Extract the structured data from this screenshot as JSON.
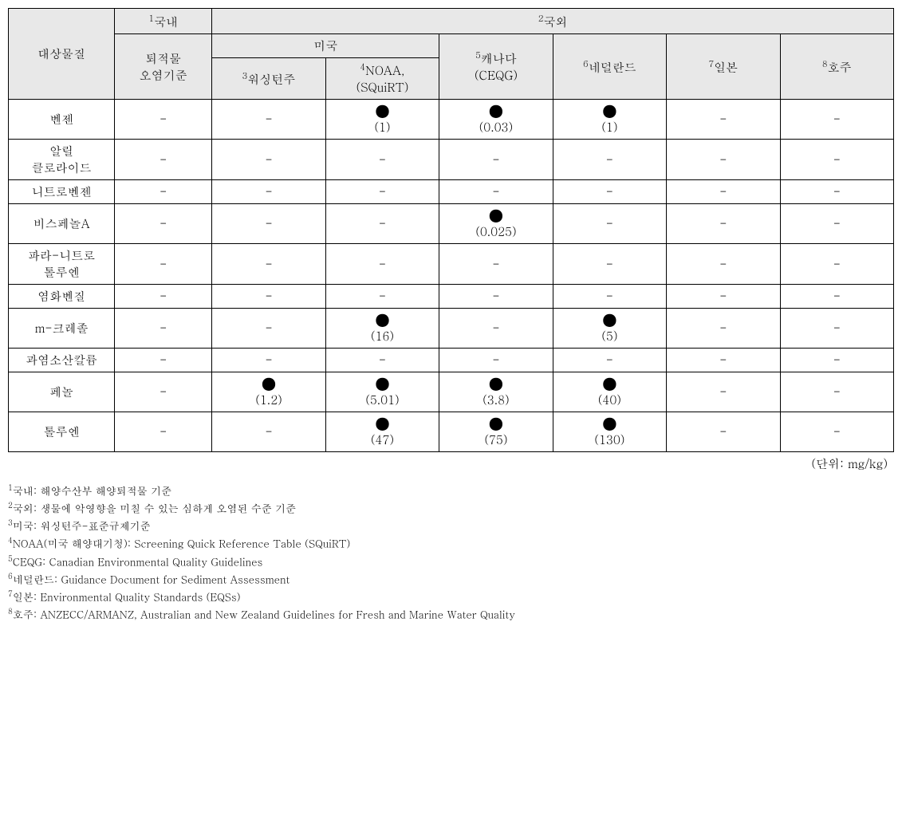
{
  "headers": {
    "substance": "대상물질",
    "domestic_super": "1",
    "domestic": "국내",
    "domestic_sub": "퇴적물\n오염기준",
    "foreign_super": "2",
    "foreign": "국외",
    "usa": "미국",
    "washington_super": "3",
    "washington": "워싱턴주",
    "noaa_super": "4",
    "noaa": "NOAA,\n(SQuiRT)",
    "canada_super": "5",
    "canada": "캐나다\n(CEQG)",
    "netherlands_super": "6",
    "netherlands": "네덜란드",
    "japan_super": "7",
    "japan": "일본",
    "australia_super": "8",
    "australia": "호주"
  },
  "dot": "●",
  "dash": "-",
  "rows": [
    {
      "name": "벤젠",
      "cells": [
        "-",
        "-",
        {
          "dot": true,
          "val": "(1)"
        },
        {
          "dot": true,
          "val": "(0.03)"
        },
        {
          "dot": true,
          "val": "(1)"
        },
        "-",
        "-"
      ]
    },
    {
      "name": "알릴\n클로라이드",
      "cells": [
        "-",
        "-",
        "-",
        "-",
        "-",
        "-",
        "-"
      ]
    },
    {
      "name": "니트로벤젠",
      "cells": [
        "-",
        "-",
        "-",
        "-",
        "-",
        "-",
        "-"
      ]
    },
    {
      "name": "비스페놀A",
      "cells": [
        "-",
        "-",
        "-",
        {
          "dot": true,
          "val": "(0.025)"
        },
        "-",
        "-",
        "-"
      ]
    },
    {
      "name": "파라-니트로\n톨루엔",
      "cells": [
        "-",
        "-",
        "-",
        "-",
        "-",
        "-",
        "-"
      ]
    },
    {
      "name": "염화벤질",
      "cells": [
        "-",
        "-",
        "-",
        "-",
        "-",
        "-",
        "-"
      ]
    },
    {
      "name": "m-크레졸",
      "cells": [
        "-",
        "-",
        {
          "dot": true,
          "val": "(16)"
        },
        "-",
        {
          "dot": true,
          "val": "(5)"
        },
        "-",
        "-"
      ]
    },
    {
      "name": "과염소산칼륨",
      "cells": [
        "-",
        "-",
        "-",
        "-",
        "-",
        "-",
        "-"
      ]
    },
    {
      "name": "페놀",
      "cells": [
        "-",
        {
          "dot": true,
          "val": "(1.2)"
        },
        {
          "dot": true,
          "val": "(5.01)"
        },
        {
          "dot": true,
          "val": "(3.8)"
        },
        {
          "dot": true,
          "val": "(40)"
        },
        "-",
        "-"
      ]
    },
    {
      "name": "톨루엔",
      "cells": [
        "-",
        "-",
        {
          "dot": true,
          "val": "(47)"
        },
        {
          "dot": true,
          "val": "(75)"
        },
        {
          "dot": true,
          "val": "(130)"
        },
        "-",
        "-"
      ]
    }
  ],
  "unit": "(단위: mg/kg)",
  "footnotes": [
    {
      "sup": "1",
      "text": "국내: 해양수산부 해양퇴적물 기준"
    },
    {
      "sup": "2",
      "text": "국외: 생물에 악영향을 미칠 수 있는 심하게 오염된 수준 기준"
    },
    {
      "sup": "3",
      "text": "미국: 워싱턴주-표준규제기준"
    },
    {
      "sup": "4",
      "text": "NOAA(미국 해양대기청): Screening Quick Reference Table (SQuiRT)"
    },
    {
      "sup": "5",
      "text": "CEQG: Canadian Environmental Quality Guidelines"
    },
    {
      "sup": "6",
      "text": "네덜란드: Guidance Document for Sediment Assessment"
    },
    {
      "sup": "7",
      "text": "일본: Environmental Quality Standards (EQSs)"
    },
    {
      "sup": "8",
      "text": "호주: ANZECC/ARMANZ, Australian and New Zealand Guidelines for Fresh and Marine Water Quality"
    }
  ],
  "styling": {
    "header_bg": "#e8e8e8",
    "border_color": "#000000",
    "text_color": "#000000",
    "body_bg": "#ffffff",
    "body_fontsize": 15,
    "footnote_fontsize": 13,
    "dot_fontsize": 20
  }
}
